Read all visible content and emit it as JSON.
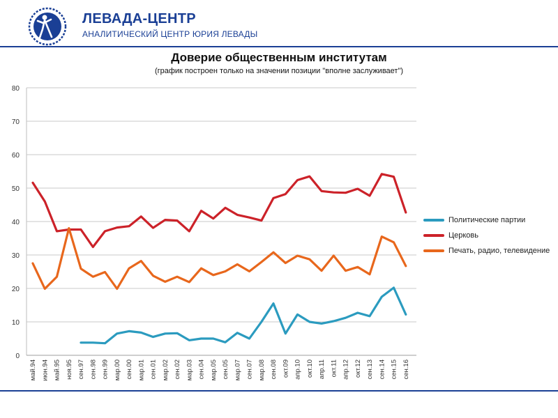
{
  "header": {
    "org_name": "ЛЕВАДА-ЦЕНТР",
    "org_subtitle": "АНАЛИТИЧЕСКИЙ ЦЕНТР ЮРИЯ ЛЕВАДЫ",
    "logo_icon": "levada-logo-icon",
    "brand_color": "#1a3f95"
  },
  "chart_data": {
    "type": "line",
    "title": "Доверие общественным институтам",
    "subtitle": "(график построен только на значении позиции \"вполне заслуживает\")",
    "xlabel": "",
    "ylabel": "",
    "ylim": [
      0,
      80
    ],
    "yticks": [
      0,
      10,
      20,
      30,
      40,
      50,
      60,
      70,
      80
    ],
    "grid": true,
    "legend_position": "right",
    "categories": [
      "май.94",
      "июн.94",
      "май.95",
      "ноя.95",
      "сен.97",
      "сен.98",
      "сен.99",
      "мар.00",
      "сен.00",
      "мар.01",
      "сен.01",
      "мар.02",
      "сен.02",
      "мар.03",
      "сен.04",
      "мар.05",
      "сен.05",
      "мар.07",
      "сен.07",
      "мар.08",
      "сен.08",
      "окт.09",
      "апр.10",
      "окт.10",
      "апр.11",
      "окт.11",
      "апр.12",
      "окт.12",
      "сен.13",
      "сен.14",
      "сен.15",
      "сен.16"
    ],
    "series": [
      {
        "name": "Политические партии",
        "color": "#2b9bbf",
        "values": [
          null,
          null,
          null,
          null,
          3.8,
          3.8,
          3.6,
          6.5,
          7.2,
          6.8,
          5.5,
          6.5,
          6.6,
          4.5,
          5.0,
          5.0,
          3.9,
          6.7,
          5.0,
          10.0,
          15.5,
          6.5,
          12.2,
          10.0,
          9.5,
          10.2,
          11.2,
          12.7,
          11.7,
          17.5,
          20.2,
          12.2
        ]
      },
      {
        "name": "Церковь",
        "color": "#cc2229",
        "values": [
          51.6,
          46.0,
          37.1,
          37.6,
          37.6,
          32.4,
          37.1,
          38.2,
          38.6,
          41.5,
          38.1,
          40.5,
          40.3,
          37.1,
          43.2,
          40.9,
          44.1,
          42.0,
          41.2,
          40.3,
          47.0,
          48.2,
          52.4,
          53.5,
          49.1,
          48.7,
          48.6,
          49.8,
          47.7,
          54.2,
          53.4,
          42.7
        ]
      },
      {
        "name": "Печать, радио, телевидение",
        "color": "#e8671c",
        "values": [
          27.5,
          19.9,
          23.5,
          38.0,
          25.9,
          23.5,
          24.9,
          19.9,
          26.0,
          28.2,
          23.8,
          22.0,
          23.5,
          21.9,
          26.0,
          24.0,
          25.1,
          27.2,
          25.1,
          27.9,
          30.8,
          27.6,
          29.8,
          28.7,
          25.3,
          29.8,
          25.3,
          26.4,
          24.2,
          35.5,
          33.8,
          26.7
        ]
      }
    ]
  }
}
